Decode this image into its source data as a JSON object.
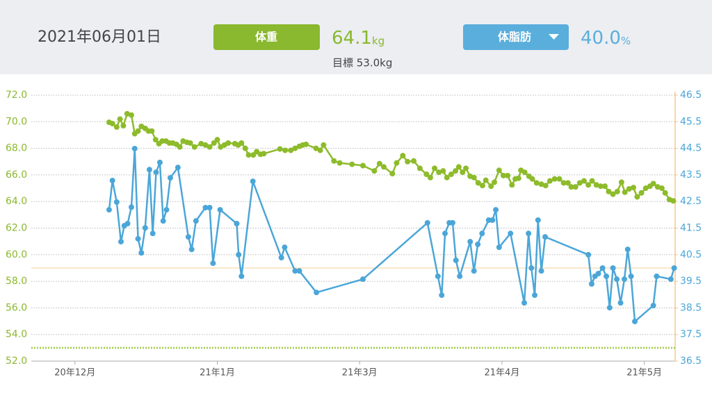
{
  "header": {
    "date": "2021年06月01日",
    "weight_value": "64.1",
    "weight_unit": "kg",
    "goal": "目標 53.0kg",
    "fat_value": "40.0",
    "fat_unit": "%"
  },
  "chart_data": {
    "type": "line",
    "grid": true,
    "xlim": [
      -9.2,
      126.5
    ],
    "xticks": [
      {
        "value": 0,
        "label": "20年12月"
      },
      {
        "value": 30,
        "label": "21年1月"
      },
      {
        "value": 60,
        "label": "21年3月"
      },
      {
        "value": 90,
        "label": "21年4月"
      },
      {
        "value": 120,
        "label": "21年5月"
      }
    ],
    "ylim": [
      52,
      72
    ],
    "yticks": [
      {
        "value": 52,
        "label": "52.0"
      },
      {
        "value": 54,
        "label": "54.0"
      },
      {
        "value": 56,
        "label": "56.0"
      },
      {
        "value": 58,
        "label": "58.0"
      },
      {
        "value": 60,
        "label": "60.0"
      },
      {
        "value": 62,
        "label": "62.0"
      },
      {
        "value": 64,
        "label": "64.0"
      },
      {
        "value": 66,
        "label": "66.0"
      },
      {
        "value": 68,
        "label": "68.0"
      },
      {
        "value": 70,
        "label": "70.0"
      },
      {
        "value": 72,
        "label": "72.0"
      }
    ],
    "y2lim": [
      36.5,
      46.5
    ],
    "y2ticks": [
      36.5,
      37.5,
      38.5,
      39.5,
      40.5,
      41.5,
      42.5,
      43.5,
      44.5,
      45.5,
      46.5
    ],
    "reference_lines": [
      {
        "value": 53,
        "axis": "y",
        "color": "#9cc93f",
        "style": "dotted"
      },
      {
        "value": 40,
        "axis": "y2",
        "color": "#f6d3a3",
        "style": "solid"
      }
    ],
    "series": [
      {
        "name": "体重",
        "color": "#8dbb2b",
        "axis": "y",
        "x": [
          7.2,
          7.9,
          8.8,
          9.5,
          10.2,
          11.0,
          11.9,
          12.6,
          13.3,
          14.0,
          14.8,
          15.5,
          16.2,
          17.0,
          17.7,
          18.4,
          19.2,
          19.9,
          20.6,
          21.4,
          22.1,
          22.8,
          23.6,
          24.3,
          25.2,
          26.6,
          27.5,
          28.4,
          29.3,
          30.0,
          30.7,
          31.5,
          32.3,
          33.7,
          34.4,
          35.1,
          35.9,
          36.6,
          37.6,
          38.3,
          39.1,
          39.8,
          43.2,
          44.3,
          45.5,
          46.4,
          47.3,
          48.0,
          48.7,
          50.8,
          51.7,
          52.4,
          54.6,
          55.8,
          58.4,
          60.7,
          63.1,
          64.2,
          65.1,
          66.9,
          67.8,
          69.1,
          70.1,
          71.4,
          72.7,
          74.1,
          74.9,
          75.8,
          76.7,
          77.6,
          78.4,
          79.3,
          80.2,
          80.9,
          81.7,
          82.4,
          83.3,
          84.1,
          85.0,
          85.9,
          86.6,
          87.7,
          88.4,
          89.4,
          90.3,
          91.2,
          92.1,
          92.8,
          93.5,
          94.0,
          94.8,
          95.7,
          96.4,
          97.3,
          98.3,
          99.2,
          100.1,
          101.1,
          102.1,
          103.0,
          103.9,
          104.6,
          105.5,
          106.4,
          107.3,
          108.2,
          109.0,
          109.9,
          110.8,
          111.7,
          112.5,
          113.4,
          114.3,
          115.2,
          115.9,
          116.8,
          117.7,
          118.5,
          119.4,
          120.3,
          121.2,
          121.9,
          122.8,
          123.7,
          124.4,
          125.3,
          126.1
        ],
        "values": [
          69.96,
          69.86,
          69.6,
          70.2,
          69.7,
          70.6,
          70.5,
          69.1,
          69.3,
          69.65,
          69.5,
          69.3,
          69.3,
          68.65,
          68.35,
          68.55,
          68.55,
          68.4,
          68.4,
          68.3,
          68.1,
          68.55,
          68.45,
          68.4,
          68.1,
          68.35,
          68.25,
          68.1,
          68.4,
          68.65,
          68.1,
          68.25,
          68.4,
          68.35,
          68.25,
          68.4,
          68.0,
          67.5,
          67.5,
          67.75,
          67.55,
          67.6,
          67.95,
          67.85,
          67.85,
          68.0,
          68.15,
          68.25,
          68.3,
          68.0,
          67.85,
          68.25,
          67.05,
          66.9,
          66.8,
          66.7,
          66.3,
          66.85,
          66.6,
          66.1,
          66.9,
          67.45,
          67.0,
          67.05,
          66.5,
          66.05,
          65.8,
          66.5,
          66.2,
          66.3,
          65.8,
          66.05,
          66.3,
          66.6,
          66.2,
          66.5,
          65.9,
          65.8,
          65.4,
          65.2,
          65.6,
          65.15,
          65.45,
          66.35,
          65.95,
          65.95,
          65.25,
          65.7,
          65.75,
          66.35,
          66.2,
          65.9,
          65.7,
          65.4,
          65.3,
          65.2,
          65.55,
          65.7,
          65.7,
          65.4,
          65.4,
          65.1,
          65.1,
          65.4,
          65.55,
          65.25,
          65.55,
          65.25,
          65.15,
          65.15,
          64.75,
          64.55,
          64.75,
          65.45,
          64.7,
          64.95,
          65.05,
          64.35,
          64.65,
          65.0,
          65.15,
          65.35,
          65.1,
          65.0,
          64.65,
          64.15,
          64.05
        ]
      },
      {
        "name": "体脂肪",
        "color": "#4ba6d8",
        "axis": "y2",
        "x": [
          7.2,
          7.9,
          8.8,
          9.7,
          10.4,
          11.1,
          11.9,
          12.6,
          13.3,
          14.0,
          14.8,
          15.7,
          16.4,
          17.1,
          17.9,
          18.6,
          19.3,
          20.1,
          21.7,
          23.9,
          24.6,
          25.5,
          27.5,
          28.4,
          29.1,
          30.6,
          34.1,
          34.5,
          35.1,
          37.5,
          43.5,
          44.2,
          46.4,
          47.3,
          50.9,
          60.7,
          74.3,
          76.5,
          77.3,
          78.0,
          78.9,
          79.6,
          80.3,
          81.1,
          83.3,
          84.1,
          84.9,
          85.8,
          87.2,
          88.0,
          88.7,
          89.4,
          91.8,
          94.7,
          95.6,
          96.2,
          96.9,
          97.6,
          98.3,
          99.1,
          108.2,
          108.9,
          109.6,
          110.3,
          111.2,
          112.0,
          112.7,
          113.4,
          114.2,
          115.0,
          115.8,
          116.5,
          117.2,
          118.0,
          121.9,
          122.6,
          125.6,
          126.3
        ],
        "values": [
          42.19,
          43.29,
          42.48,
          40.99,
          41.59,
          41.67,
          42.29,
          44.49,
          41.1,
          40.57,
          41.51,
          43.7,
          41.3,
          43.6,
          43.97,
          41.77,
          42.19,
          43.39,
          43.78,
          41.17,
          40.7,
          41.77,
          42.27,
          42.27,
          40.18,
          42.19,
          41.67,
          40.5,
          39.69,
          43.26,
          40.39,
          40.78,
          39.89,
          39.89,
          39.08,
          39.58,
          41.7,
          39.69,
          38.98,
          41.3,
          41.7,
          41.7,
          40.29,
          39.69,
          40.99,
          39.89,
          40.89,
          41.3,
          41.8,
          41.8,
          42.19,
          40.78,
          41.3,
          38.69,
          41.3,
          40.0,
          38.98,
          41.8,
          39.89,
          41.17,
          40.5,
          39.4,
          39.69,
          39.79,
          40.0,
          39.69,
          38.51,
          40.0,
          39.58,
          38.69,
          39.58,
          40.7,
          39.69,
          37.99,
          38.59,
          39.69,
          39.58,
          40.0
        ]
      }
    ]
  }
}
